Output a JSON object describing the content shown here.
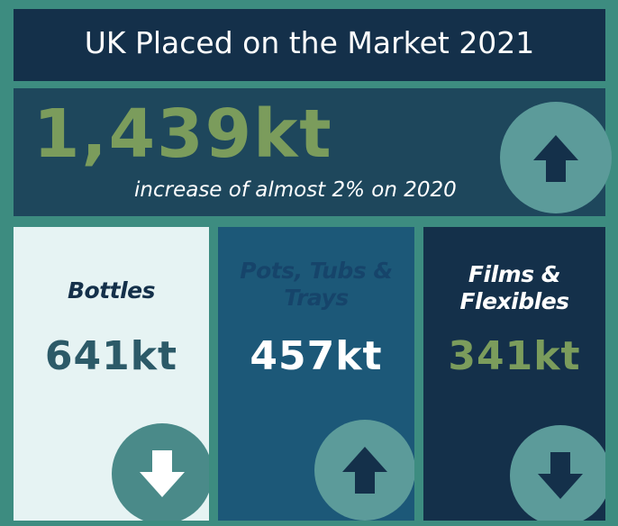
{
  "header": {
    "title": "UK Placed on the Market 2021"
  },
  "headline": {
    "value": "1,439kt",
    "subtitle": "increase of almost 2% on 2020"
  },
  "cards": [
    {
      "label": "Bottles",
      "value": "641kt"
    },
    {
      "label": "Pots, Tubs & Trays",
      "value": "457kt"
    },
    {
      "label": "Films & Flexibles",
      "value": "341kt"
    }
  ]
}
